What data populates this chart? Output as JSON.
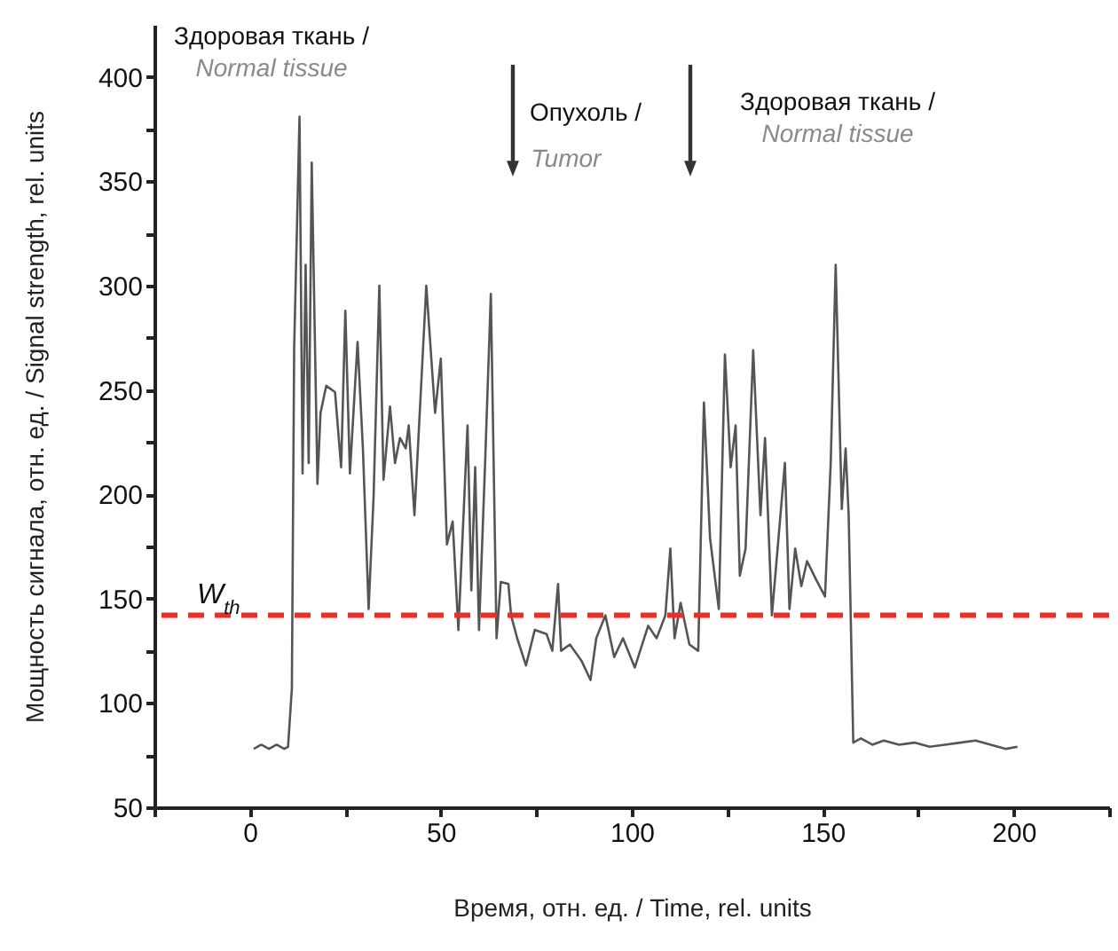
{
  "chart_data": {
    "type": "line",
    "xlabel": "Время, отн. ед. / Time, rel. units",
    "ylabel": "Мощность сигнала, отн. ед. / Signal strength, rel. units",
    "x": [
      1,
      3,
      5,
      7,
      9,
      10,
      11,
      11.6,
      13,
      13.8,
      14.6,
      15.4,
      16.2,
      17.7,
      18.5,
      20,
      22.3,
      23.9,
      25,
      26.2,
      28.2,
      29.6,
      31.1,
      32.4,
      33.9,
      35,
      36.7,
      38,
      39.3,
      40.8,
      41.6,
      43.1,
      46.2,
      48.5,
      50,
      51.6,
      53.1,
      54.6,
      57,
      58,
      59,
      60,
      61.6,
      63.1,
      64.6,
      65.7,
      67.7,
      68.4,
      70,
      72.3,
      74.6,
      77.7,
      79.2,
      80.7,
      81.5,
      83.8,
      86.9,
      89.2,
      90.7,
      93.1,
      95.4,
      97.7,
      100.8,
      104.3,
      106.5,
      108.8,
      110.1,
      111.2,
      112.8,
      115.1,
      117.4,
      118.9,
      120.5,
      122.8,
      124.4,
      125.9,
      127.2,
      128.3,
      129.8,
      131.8,
      133.7,
      134.9,
      136.7,
      140.1,
      141.3,
      142.8,
      144.4,
      145.9,
      148.3,
      150.6,
      152.1,
      153.4,
      155,
      156,
      156.8,
      158,
      160,
      163,
      166,
      170,
      174,
      178,
      182,
      186,
      190,
      194,
      198,
      201
    ],
    "series": [
      {
        "color": "#555555",
        "values": [
          78,
          80,
          78,
          80,
          78,
          79,
          107,
          270,
          381,
          210,
          310,
          215,
          359,
          205,
          239,
          252,
          249,
          213,
          288,
          210,
          273,
          222,
          145,
          199,
          300,
          207,
          242,
          215,
          227,
          222,
          233,
          190,
          300,
          239,
          265,
          176,
          187,
          135,
          233,
          154,
          213,
          135,
          215,
          296,
          131,
          158,
          157,
          142,
          131,
          118,
          135,
          133,
          125,
          157,
          125,
          128,
          120,
          111,
          131,
          142,
          122,
          131,
          117,
          137,
          131,
          142,
          174,
          131,
          148,
          128,
          125,
          244,
          179,
          145,
          267,
          213,
          233,
          161,
          174,
          269,
          190,
          227,
          142,
          215,
          145,
          174,
          156,
          168,
          159,
          151,
          215,
          310,
          193,
          222,
          190,
          81,
          83,
          80,
          82,
          80,
          81,
          79,
          80,
          81,
          82,
          80,
          78,
          79
        ]
      }
    ],
    "xlim": [
      -25,
      225
    ],
    "xticks": [
      {
        "value": -25,
        "label": null
      },
      0,
      {
        "value": 25,
        "label": null
      },
      50,
      {
        "value": 75,
        "label": null
      },
      100,
      {
        "value": 125,
        "label": null
      },
      150,
      {
        "value": 175,
        "label": null
      },
      200,
      {
        "value": 225,
        "label": null
      }
    ],
    "ylim": [
      50,
      425
    ],
    "yticks": [
      50,
      {
        "value": 75,
        "label": null
      },
      100,
      {
        "value": 125,
        "label": null
      },
      150,
      {
        "value": 175,
        "label": null
      },
      200,
      {
        "value": 225,
        "label": null
      },
      250,
      {
        "value": 275,
        "label": null
      },
      300,
      {
        "value": 325,
        "label": null
      },
      350,
      {
        "value": 375,
        "label": null
      },
      400
    ],
    "ref_lines": [
      {
        "axis": "y",
        "value": 142,
        "label": "W$_{th}$",
        "color": "#e8302a",
        "line_style": "dashed"
      }
    ],
    "annotations": [
      "Здоровая ткань /",
      "Normal tissue",
      "Опухоль /",
      "Tumor",
      "Здоровая ткань /",
      "Normal tissue"
    ],
    "marker": "none",
    "line_style": "solid"
  }
}
